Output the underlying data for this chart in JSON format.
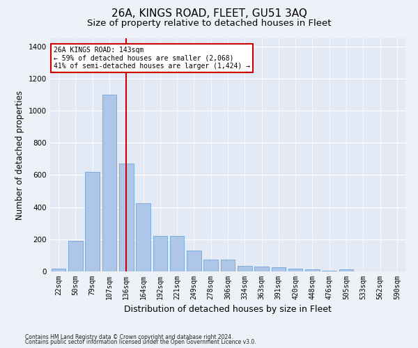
{
  "title": "26A, KINGS ROAD, FLEET, GU51 3AQ",
  "subtitle": "Size of property relative to detached houses in Fleet",
  "xlabel": "Distribution of detached houses by size in Fleet",
  "ylabel": "Number of detached properties",
  "footnote1": "Contains HM Land Registry data © Crown copyright and database right 2024.",
  "footnote2": "Contains public sector information licensed under the Open Government Licence v3.0.",
  "bar_labels": [
    "22sqm",
    "50sqm",
    "79sqm",
    "107sqm",
    "136sqm",
    "164sqm",
    "192sqm",
    "221sqm",
    "249sqm",
    "278sqm",
    "306sqm",
    "334sqm",
    "363sqm",
    "391sqm",
    "420sqm",
    "448sqm",
    "476sqm",
    "505sqm",
    "533sqm",
    "562sqm",
    "590sqm"
  ],
  "bar_values": [
    18,
    190,
    620,
    1100,
    670,
    425,
    220,
    220,
    130,
    75,
    75,
    35,
    30,
    25,
    18,
    12,
    5,
    12,
    0,
    0,
    0
  ],
  "bar_color": "#aec6e8",
  "bar_edgecolor": "#5b9bd5",
  "red_line_index": 4,
  "red_line_color": "#cc0000",
  "annotation_line1": "26A KINGS ROAD: 143sqm",
  "annotation_line2": "← 59% of detached houses are smaller (2,068)",
  "annotation_line3": "41% of semi-detached houses are larger (1,424) →",
  "annotation_box_color": "#cc0000",
  "ylim": [
    0,
    1450
  ],
  "yticks": [
    0,
    200,
    400,
    600,
    800,
    1000,
    1200,
    1400
  ],
  "background_color": "#eef2f8",
  "plot_background": "#e4eaf5",
  "title_fontsize": 11,
  "subtitle_fontsize": 9.5,
  "xlabel_fontsize": 9,
  "ylabel_fontsize": 8.5,
  "tick_fontsize": 7,
  "footnote_fontsize": 5.5
}
